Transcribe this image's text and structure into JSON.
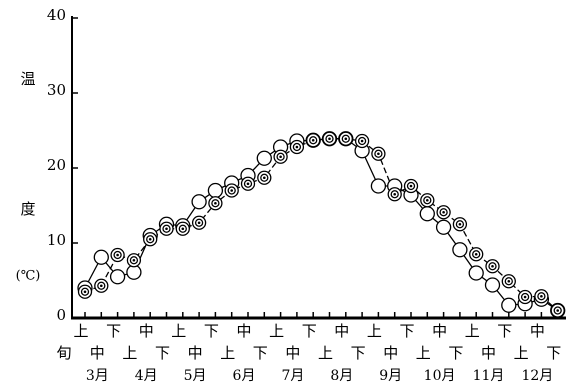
{
  "chart_data": {
    "type": "line",
    "y_label": [
      "温",
      "度",
      "(℃)"
    ],
    "x_label": "旬",
    "categories": [
      "上",
      "中",
      "下",
      "上",
      "中",
      "下",
      "上",
      "中",
      "下",
      "上",
      "中",
      "下",
      "上",
      "中",
      "下",
      "上",
      "中",
      "下",
      "上",
      "中",
      "下",
      "上",
      "中",
      "下",
      "上",
      "中",
      "下",
      "上",
      "中",
      "下"
    ],
    "months": [
      "3月",
      "4月",
      "5月",
      "6月",
      "7月",
      "8月",
      "9月",
      "10月",
      "11月",
      "12月"
    ],
    "series": [
      {
        "color": "#000",
        "marker": "circle",
        "dashed": false,
        "values": [
          4,
          8.1,
          5.5,
          6.1,
          11,
          12.5,
          12.3,
          15.5,
          17,
          18,
          19,
          21.3,
          22.8,
          23.6,
          23.7,
          23.9,
          23.9,
          22.3,
          17.6,
          17.6,
          16.4,
          13.9,
          12.1,
          9.1,
          6,
          4.4,
          1.7,
          1.9,
          2.5,
          1
        ]
      },
      {
        "color": "#000",
        "marker": "double-circle",
        "dashed": true,
        "values": [
          3.5,
          4.3,
          8.4,
          7.7,
          10.5,
          11.9,
          11.9,
          12.7,
          15.3,
          17,
          17.9,
          18.7,
          21.5,
          22.8,
          23.7,
          23.9,
          23.9,
          23.6,
          21.9,
          16.5,
          17.6,
          15.7,
          14.1,
          12.5,
          8.5,
          6.9,
          4.9,
          2.8,
          2.9,
          1
        ]
      }
    ],
    "ylim": [
      0,
      40
    ],
    "yticks": [
      0,
      10,
      20,
      30,
      40
    ]
  }
}
